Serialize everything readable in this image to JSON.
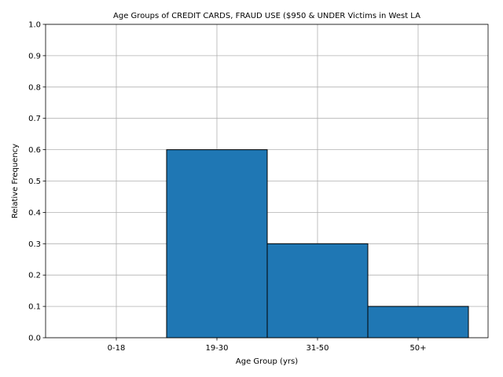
{
  "chart_data": {
    "type": "bar",
    "title": "Age Groups of CREDIT CARDS, FRAUD USE ($950 & UNDER Victims in West LA",
    "xlabel": "Age Group (yrs)",
    "ylabel": "Relative Frequency",
    "categories": [
      "0-18",
      "19-30",
      "31-50",
      "50+"
    ],
    "values": [
      0.0,
      0.6,
      0.3,
      0.1
    ],
    "ylim": [
      0,
      1.0
    ],
    "yticks": [
      "0.0",
      "0.1",
      "0.2",
      "0.3",
      "0.4",
      "0.5",
      "0.6",
      "0.7",
      "0.8",
      "0.9",
      "1.0"
    ],
    "grid": true,
    "bar_color": "#1f77b4",
    "edge_color": "#000000"
  }
}
